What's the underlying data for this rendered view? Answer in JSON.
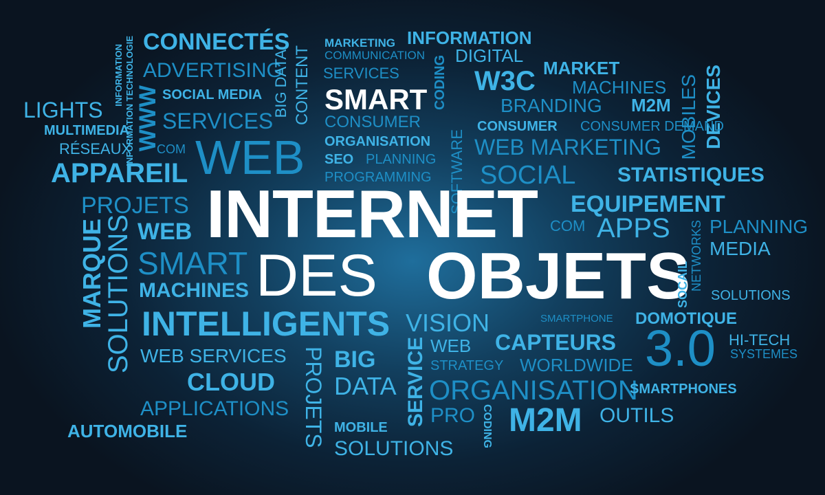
{
  "colors": {
    "white": "#ffffff",
    "light_blue": "#7ec8ea",
    "cyan": "#3fb3e6",
    "deep_blue": "#1e8fc6",
    "background": "#0b1622"
  },
  "main": {
    "internet": "INTERNET",
    "des": "DES",
    "objets": "OBJETS"
  },
  "words": {
    "connectes": "CONNECTÉS",
    "information": "INFORMATION",
    "marketing": "MARKETING",
    "communication": "COMMUNICATION",
    "digital": "DIGITAL",
    "services": "SERVICES",
    "coding": "CODING",
    "w3c": "W3C",
    "market": "MARKET",
    "devices": "DEVICES",
    "mobiles": "MOBILES",
    "advertising": "ADVERTISING",
    "big_data": "BIG DATA",
    "content": "CONTENT",
    "information_technologie": "INFORMATION TECHNOLOGIE",
    "machines": "MACHINES",
    "lights": "LIGHTS",
    "social_media": "SOCIAL MEDIA",
    "smart": "SMART",
    "branding": "BRANDING",
    "m2m": "M2M",
    "www": "WWW",
    "multimedia": "MULTIMEDIA",
    "consumer": "CONSUMER",
    "consumer_demand": "CONSUMER DEMAND",
    "reseaux": "RÉSEAUX",
    "com": "COM",
    "web": "WEB",
    "organisation": "ORGANISATION",
    "software": "SOFTWARE",
    "web_marketing": "WEB MARKETING",
    "appareil": "APPAREIL",
    "seo": "SEO",
    "planning": "PLANNING",
    "social": "SOCIAL",
    "statistiques": "STATISTIQUES",
    "programming": "PROGRAMMING",
    "projets": "PROJETS",
    "equipement": "EQUIPEMENT",
    "marque": "MARQUE",
    "solutions": "SOLUTIONS",
    "apps": "APPS",
    "media": "MEDIA",
    "networks": "NETWORKS",
    "socail": "SOCAIL",
    "smartphone": "SMARTPHONE",
    "domotique": "DOMOTIQUE",
    "intelligents": "INTELLIGENTS",
    "vision": "VISION",
    "capteurs": "CAPTEURS",
    "three_zero": "3.0",
    "hi_tech": "HI-TECH",
    "systemes": "SYSTEMES",
    "big": "BIG",
    "service": "SERVICE",
    "web_services": "WEB SERVICES",
    "strategy": "STRATEGY",
    "worldwide": "WORLDWIDE",
    "cloud": "CLOUD",
    "data": "DATA",
    "smartphones": "SMARTPHONES",
    "applications": "APPLICATIONS",
    "pro": "PRO",
    "outils": "OUTILS",
    "automobile": "AUTOMOBILE",
    "mobile": "MOBILE"
  }
}
